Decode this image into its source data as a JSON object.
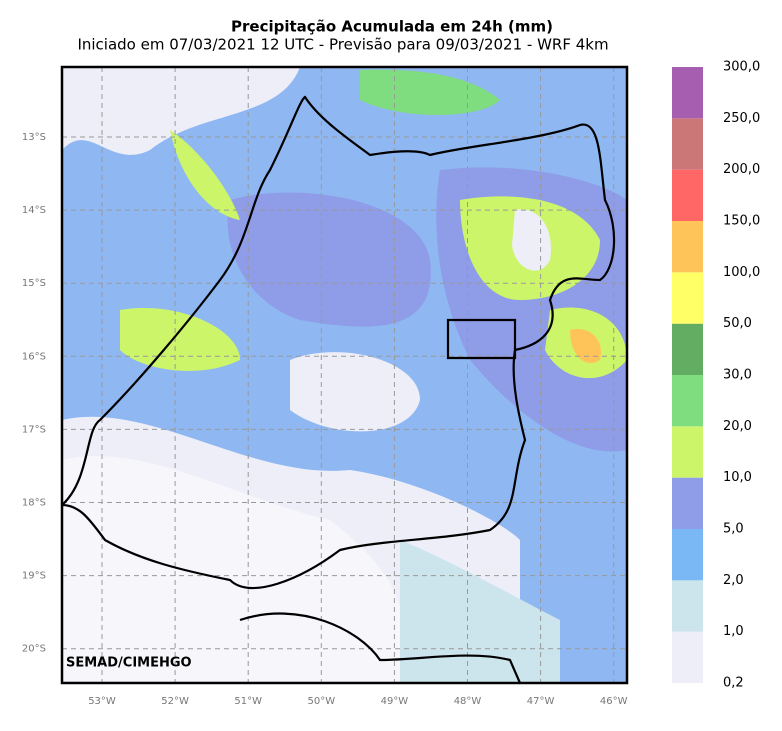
{
  "header": {
    "title": "Precipitação Acumulada em 24h (mm)",
    "subtitle": "Iniciado em 07/03/2021 12 UTC - Previsão para 09/03/2021 - WRF 4km"
  },
  "map": {
    "lat_labels": [
      "13°S",
      "14°S",
      "15°S",
      "16°S",
      "17°S",
      "18°S",
      "19°S",
      "20°S"
    ],
    "lon_labels": [
      "53°W",
      "52°W",
      "51°W",
      "50°W",
      "49°W",
      "48°W",
      "47°W",
      "46°W"
    ],
    "credit": "SEMAD/CIMEHGO"
  },
  "colorbar": {
    "labels": [
      "0,2",
      "1,0",
      "2,0",
      "5,0",
      "10,0",
      "20,0",
      "30,0",
      "50,0",
      "100,0",
      "150,0",
      "200,0",
      "250,0",
      "300,0"
    ],
    "colors": [
      "#eeeef8",
      "#cce4ec",
      "#7ab8f5",
      "#8f9ce8",
      "#ccf56a",
      "#7fdc7f",
      "#63ad63",
      "#ffff66",
      "#fec45a",
      "#ff6666",
      "#cc7777",
      "#a65fb0"
    ]
  }
}
